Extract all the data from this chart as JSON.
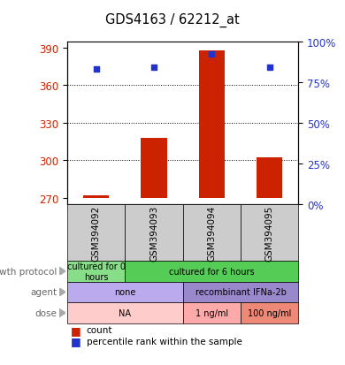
{
  "title": "GDS4163 / 62212_at",
  "samples": [
    "GSM394092",
    "GSM394093",
    "GSM394094",
    "GSM394095"
  ],
  "bar_values": [
    272,
    318,
    388,
    302
  ],
  "bar_base": 270,
  "percentile_values": [
    83,
    84,
    92,
    84
  ],
  "ylim_left": [
    265,
    395
  ],
  "ylim_right": [
    0,
    100
  ],
  "yticks_left": [
    270,
    300,
    330,
    360,
    390
  ],
  "yticks_right": [
    0,
    25,
    50,
    75,
    100
  ],
  "bar_color": "#cc2200",
  "percentile_color": "#2233cc",
  "grid_lines": [
    300,
    330,
    360
  ],
  "growth_protocol": [
    {
      "label": "cultured for 0\nhours",
      "span": [
        0,
        1
      ],
      "color": "#88dd88"
    },
    {
      "label": "cultured for 6 hours",
      "span": [
        1,
        4
      ],
      "color": "#55cc55"
    }
  ],
  "agent": [
    {
      "label": "none",
      "span": [
        0,
        2
      ],
      "color": "#bbaaee"
    },
    {
      "label": "recombinant IFNa-2b",
      "span": [
        2,
        4
      ],
      "color": "#9988cc"
    }
  ],
  "dose": [
    {
      "label": "NA",
      "span": [
        0,
        2
      ],
      "color": "#ffcccc"
    },
    {
      "label": "1 ng/ml",
      "span": [
        2,
        3
      ],
      "color": "#ffaaaa"
    },
    {
      "label": "100 ng/ml",
      "span": [
        3,
        4
      ],
      "color": "#ee8877"
    }
  ],
  "row_labels": [
    "growth protocol",
    "agent",
    "dose"
  ],
  "axis_label_color_left": "#cc2200",
  "axis_label_color_right": "#2233cc",
  "sample_box_color": "#cccccc",
  "arrow_color": "#aaaaaa",
  "row_label_color": "#666666",
  "legend_bar_color": "#cc2200",
  "legend_pct_color": "#2233cc"
}
